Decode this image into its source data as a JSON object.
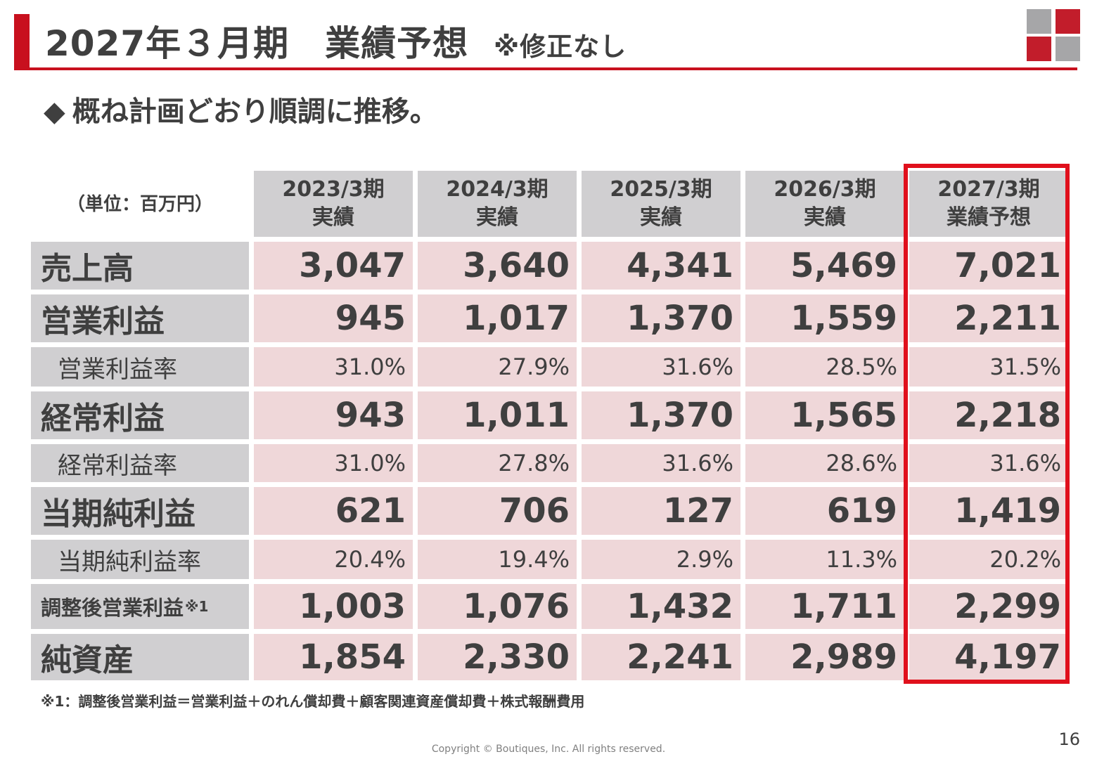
{
  "header": {
    "title": "2027年３月期　業績予想",
    "subtitle": "※修正なし",
    "logo_colors": [
      "#a6a6a8",
      "#c21d2b",
      "#c21d2b",
      "#a6a6a8"
    ]
  },
  "subheading": {
    "bullet": "◆",
    "text": "概ね計画どおり順調に推移。"
  },
  "table": {
    "unit_label": "（単位：百万円）",
    "columns": [
      {
        "period": "2023/3期",
        "kind": "実績"
      },
      {
        "period": "2024/3期",
        "kind": "実績"
      },
      {
        "period": "2025/3期",
        "kind": "実績"
      },
      {
        "period": "2026/3期",
        "kind": "実績"
      },
      {
        "period": "2027/3期",
        "kind": "業績予想"
      }
    ],
    "rows": [
      {
        "label": "売上高",
        "values": [
          "3,047",
          "3,640",
          "4,341",
          "5,469",
          "7,021"
        ]
      },
      {
        "label": "営業利益",
        "values": [
          "945",
          "1,017",
          "1,370",
          "1,559",
          "2,211"
        ]
      },
      {
        "label": "営業利益率",
        "values": [
          "31.0%",
          "27.9%",
          "31.6%",
          "28.5%",
          "31.5%"
        ]
      },
      {
        "label": "経常利益",
        "values": [
          "943",
          "1,011",
          "1,370",
          "1,565",
          "2,218"
        ]
      },
      {
        "label": "経常利益率",
        "values": [
          "31.0%",
          "27.8%",
          "31.6%",
          "28.6%",
          "31.6%"
        ]
      },
      {
        "label": "当期純利益",
        "values": [
          "621",
          "706",
          "127",
          "619",
          "1,419"
        ]
      },
      {
        "label": "当期純利益率",
        "values": [
          "20.4%",
          "19.4%",
          "2.9%",
          "11.3%",
          "20.2%"
        ]
      },
      {
        "label": "調整後営業利益",
        "note": "※1",
        "values": [
          "1,003",
          "1,076",
          "1,432",
          "1,711",
          "2,299"
        ]
      },
      {
        "label": "純資産",
        "values": [
          "1,854",
          "2,330",
          "2,241",
          "2,989",
          "4,197"
        ]
      }
    ],
    "highlight_color": "#e0101c",
    "header_bg": "#d0cfd1",
    "value_bg": "#efd7d9"
  },
  "footnote": "※1：調整後営業利益＝営業利益＋のれん償却費＋顧客関連資産償却費＋株式報酬費用",
  "footer": {
    "copyright": "Copyright © Boutiques, Inc. All rights reserved.",
    "page_number": "16"
  }
}
